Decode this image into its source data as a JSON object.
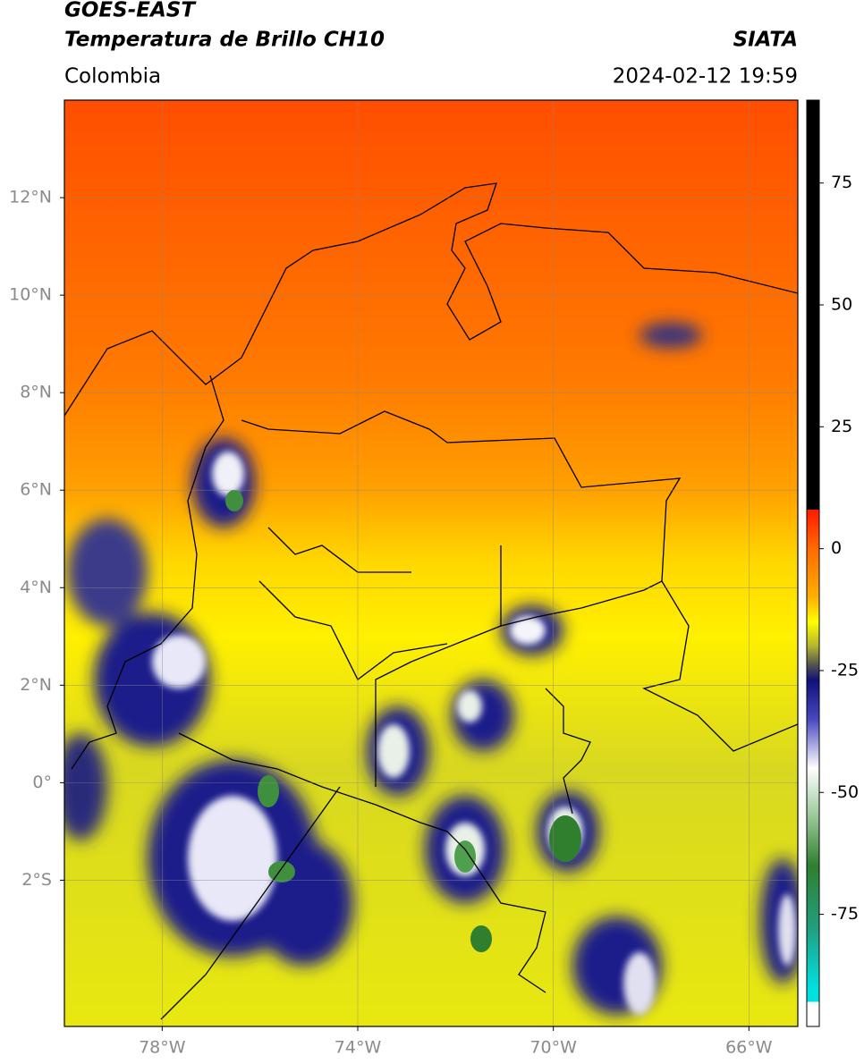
{
  "title": "GOES-EAST",
  "subtitle": "Temperatura de Brillo CH10",
  "region": "Colombia",
  "source": "SIATA",
  "timestamp": "2024-02-12 19:59",
  "map": {
    "xlim": [
      -80,
      -65
    ],
    "ylim": [
      -5,
      14
    ],
    "xticks": [
      {
        "value": -78,
        "label": "78°W"
      },
      {
        "value": -74,
        "label": "74°W"
      },
      {
        "value": -70,
        "label": "70°W"
      },
      {
        "value": -66,
        "label": "66°W"
      }
    ],
    "yticks": [
      {
        "value": 12,
        "label": "12°N"
      },
      {
        "value": 10,
        "label": "10°N"
      },
      {
        "value": 8,
        "label": "8°N"
      },
      {
        "value": 6,
        "label": "6°N"
      },
      {
        "value": 4,
        "label": "4°N"
      },
      {
        "value": 2,
        "label": "2°N"
      },
      {
        "value": 0,
        "label": "0°"
      },
      {
        "value": -2,
        "label": "2°S"
      }
    ],
    "grid": true
  },
  "colorbar": {
    "lim": [
      -98,
      92
    ],
    "ticks": [
      75,
      50,
      25,
      0,
      -25,
      -50,
      -75
    ],
    "stops": [
      {
        "value": 92,
        "color": "#000000"
      },
      {
        "value": 8,
        "color": "#000000"
      },
      {
        "value": 8,
        "color": "#ff1a00"
      },
      {
        "value": 0,
        "color": "#ff6a00"
      },
      {
        "value": -10,
        "color": "#ffb000"
      },
      {
        "value": -15,
        "color": "#ffff00"
      },
      {
        "value": -20,
        "color": "#b4b430"
      },
      {
        "value": -24,
        "color": "#505050"
      },
      {
        "value": -27,
        "color": "#10107a"
      },
      {
        "value": -35,
        "color": "#4848c0"
      },
      {
        "value": -45,
        "color": "#ffffff"
      },
      {
        "value": -55,
        "color": "#98c898"
      },
      {
        "value": -65,
        "color": "#2f7f2f"
      },
      {
        "value": -78,
        "color": "#20a080"
      },
      {
        "value": -90,
        "color": "#00e0e0"
      },
      {
        "value": -93,
        "color": "#00e0e0"
      },
      {
        "value": -93,
        "color": "#ffffff"
      },
      {
        "value": -98,
        "color": "#ffffff"
      }
    ]
  }
}
